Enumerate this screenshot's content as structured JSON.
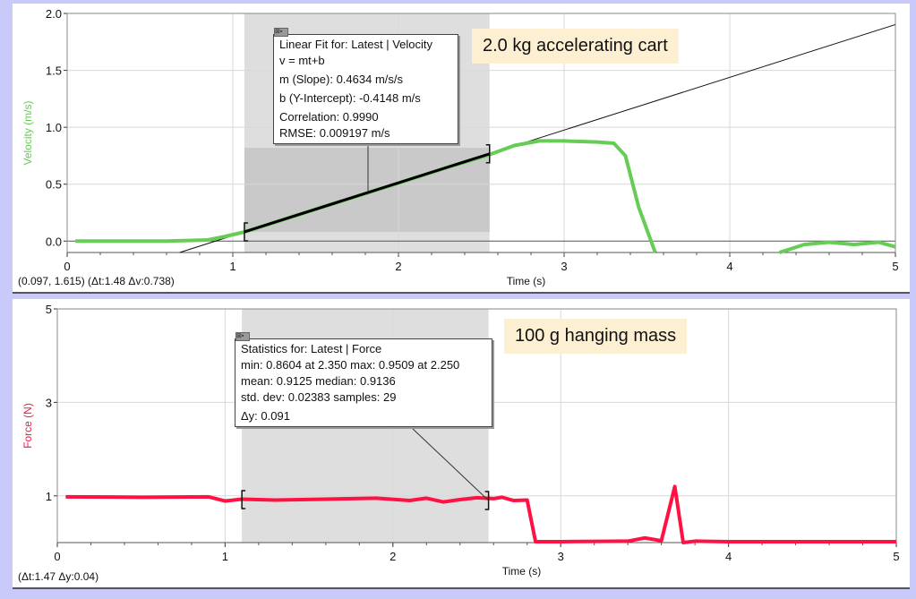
{
  "chart_data": [
    {
      "type": "line",
      "xlabel": "Time (s)",
      "ylabel": "Velocity (m/s)",
      "xlim": [
        0,
        5
      ],
      "ylim": [
        -0.1,
        2.0
      ],
      "xticks": [
        "0",
        "1",
        "2",
        "3",
        "4",
        "5"
      ],
      "yticks": [
        "0.0",
        "0.5",
        "1.0",
        "1.5",
        "2.0"
      ],
      "ytick_values": [
        0,
        0.5,
        1,
        1.5,
        2
      ],
      "series_color": "#66cc55",
      "x": [
        0.05,
        0.3,
        0.6,
        0.85,
        0.95,
        1.07,
        1.5,
        2.0,
        2.3,
        2.55,
        2.7,
        2.85,
        3.0,
        3.2,
        3.3,
        3.37,
        3.45,
        3.55
      ],
      "y": [
        0,
        0,
        0,
        0.01,
        0.04,
        0.08,
        0.28,
        0.51,
        0.65,
        0.76,
        0.84,
        0.88,
        0.88,
        0.87,
        0.86,
        0.75,
        0.3,
        -0.1
      ],
      "x2": [
        4.3,
        4.45,
        4.6,
        4.75,
        4.9,
        5.0
      ],
      "y2": [
        -0.1,
        -0.03,
        -0.01,
        -0.03,
        -0.01,
        -0.05
      ],
      "selection": [
        1.07,
        2.55
      ],
      "selection_yrange": [
        0.08,
        0.82
      ],
      "fit": {
        "slope": 0.4634,
        "intercept": -0.4148
      },
      "annotation": {
        "title": "Linear Fit for: Latest | Velocity",
        "eq": "v = mt+b",
        "m": "m (Slope): 0.4634 m/s/s",
        "b": "b (Y-Intercept): -0.4148 m/s",
        "corr": "Correlation: 0.9990",
        "rmse": "RMSE: 0.009197 m/s"
      },
      "label": "2.0 kg accelerating cart",
      "status": "(0.097, 1.615) (Δt:1.48 Δv:0.738)"
    },
    {
      "type": "line",
      "xlabel": "Time (s)",
      "ylabel": "Force (N)",
      "xlim": [
        0,
        5
      ],
      "ylim": [
        0,
        5
      ],
      "xticks": [
        "0",
        "1",
        "2",
        "3",
        "4",
        "5"
      ],
      "yticks": [
        "1",
        "3",
        "5"
      ],
      "ytick_values": [
        1,
        3,
        5
      ],
      "series_color": "#ff1144",
      "x": [
        0.05,
        0.5,
        0.9,
        1.0,
        1.1,
        1.3,
        1.6,
        1.9,
        2.1,
        2.2,
        2.3,
        2.4,
        2.5,
        2.6,
        2.65,
        2.72,
        2.8,
        2.85,
        3.0,
        3.4,
        3.5,
        3.6,
        3.68,
        3.73,
        3.8,
        4.0,
        5.0
      ],
      "y": [
        0.98,
        0.97,
        0.98,
        0.89,
        0.93,
        0.91,
        0.93,
        0.95,
        0.9,
        0.95,
        0.87,
        0.92,
        0.96,
        0.94,
        0.97,
        0.9,
        0.91,
        0.02,
        0.02,
        0.03,
        0.1,
        0.04,
        1.2,
        0.0,
        0.03,
        0.02,
        0.02
      ],
      "selection": [
        1.1,
        2.57
      ],
      "annotation": {
        "title": "Statistics for: Latest | Force",
        "minmax": "min: 0.8604 at 2.350 max: 0.9509 at 2.250",
        "mean": "mean: 0.9125 median: 0.9136",
        "std": "std. dev: 0.02383 samples: 29",
        "dy": "Δy: 0.091"
      },
      "label": "100 g hanging mass",
      "status": "(Δt:1.47 Δy:0.04)"
    }
  ]
}
